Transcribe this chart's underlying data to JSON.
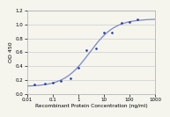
{
  "x": [
    0.02,
    0.05,
    0.1,
    0.2,
    0.5,
    1.0,
    2.0,
    5.0,
    10.0,
    20.0,
    50.0,
    100.0,
    200.0
  ],
  "y": [
    0.13,
    0.15,
    0.16,
    0.19,
    0.22,
    0.38,
    0.63,
    0.65,
    0.88,
    0.88,
    1.02,
    1.04,
    1.07
  ],
  "line_color": "#7788cc",
  "marker_color": "#2233aa",
  "xlim": [
    0.01,
    1000
  ],
  "ylim": [
    0.0,
    1.2
  ],
  "yticks": [
    0.0,
    0.2,
    0.4,
    0.6,
    0.8,
    1.0,
    1.2
  ],
  "xticks": [
    0.01,
    0.1,
    1,
    10,
    100,
    1000
  ],
  "xticklabels": [
    "0.01",
    "0.1",
    "1",
    "10",
    "100",
    "1000"
  ],
  "xlabel": "Recombinant Protein Concentration (ng/ml)",
  "ylabel": "OD 450",
  "background_color": "#f5f5ee",
  "grid_color": "#cccccc"
}
